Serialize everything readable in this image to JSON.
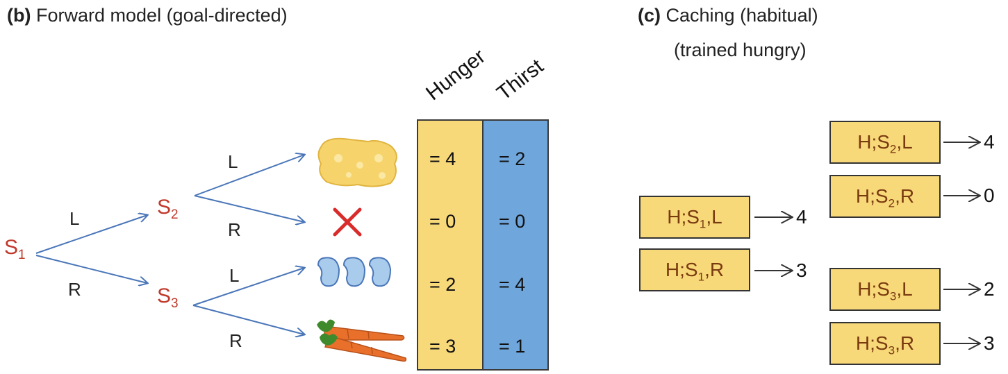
{
  "panel_b": {
    "letter": "(b)",
    "title": "Forward model (goal-directed)",
    "states": {
      "s1": {
        "base": "S",
        "sub": "1"
      },
      "s2": {
        "base": "S",
        "sub": "2"
      },
      "s3": {
        "base": "S",
        "sub": "3"
      }
    },
    "actions": {
      "l": "L",
      "r": "R"
    },
    "columns": {
      "hunger": "Hunger",
      "thirst": "Thirst"
    },
    "outcomes": [
      {
        "icon": "cheese-icon",
        "hunger": "= 4",
        "thirst": "= 2"
      },
      {
        "icon": "cross-icon",
        "hunger": "= 0",
        "thirst": "= 0"
      },
      {
        "icon": "water-drops-icon",
        "hunger": "= 2",
        "thirst": "= 4"
      },
      {
        "icon": "carrots-icon",
        "hunger": "= 3",
        "thirst": "= 1"
      }
    ],
    "colors": {
      "state": "#c0392b",
      "arrow": "#4a76b8",
      "hunger": "#f8d97a",
      "thirst": "#6fa6dc"
    }
  },
  "panel_c": {
    "letter": "(c)",
    "title_line1": "Caching (habitual)",
    "title_line2": "(trained hungry)",
    "entries": [
      {
        "prefix": "H;S",
        "sub": "1",
        "action": ",L",
        "value": "4"
      },
      {
        "prefix": "H;S",
        "sub": "1",
        "action": ",R",
        "value": "3"
      },
      {
        "prefix": "H;S",
        "sub": "2",
        "action": ",L",
        "value": "4"
      },
      {
        "prefix": "H;S",
        "sub": "2",
        "action": ",R",
        "value": "0"
      },
      {
        "prefix": "H;S",
        "sub": "3",
        "action": ",L",
        "value": "2"
      },
      {
        "prefix": "H;S",
        "sub": "3",
        "action": ",R",
        "value": "3"
      }
    ],
    "colors": {
      "box_fill": "#f8d97a",
      "box_text": "#7a3a10"
    }
  }
}
